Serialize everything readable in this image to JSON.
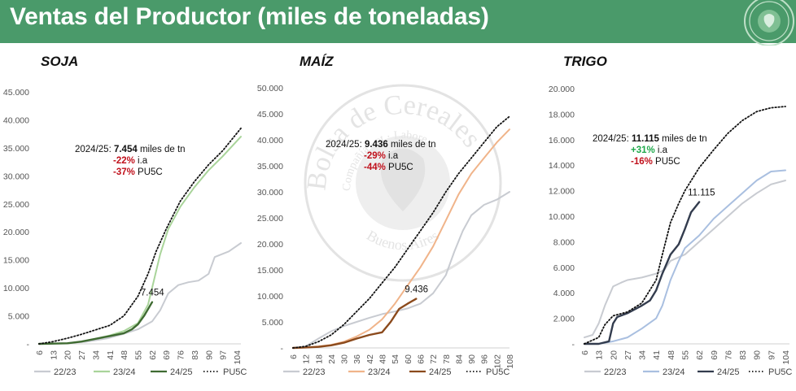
{
  "header": {
    "title": "Ventas del Productor (miles de toneladas)",
    "bg_color": "#4a9a6a"
  },
  "watermark": {
    "text_arc": "Bolsa de Cereales",
    "text_inner": "Compañía · et · Labore",
    "text_bottom": "Buenos Aires"
  },
  "colors": {
    "s2223": "#c8cbd1",
    "soja_2324": "#a9d49a",
    "soja_2425": "#3f6b32",
    "maiz_2324": "#f0b48a",
    "maiz_2425": "#8b4a1c",
    "trigo_2324": "#a9bfe0",
    "trigo_2425": "#333c4e",
    "pu5c": "#111111",
    "pct_neg": "#c0101b",
    "pct_pos": "#1ea84a"
  },
  "legend_labels": {
    "s2223": "22/23",
    "s2324": "23/24",
    "s2425": "24/25",
    "pu5c": "PU5C"
  },
  "chart_data": [
    {
      "type": "line",
      "title": "SOJA",
      "ylim": [
        0,
        45000
      ],
      "yticks": [
        "-",
        "5.000",
        "10.000",
        "15.000",
        "20.000",
        "25.000",
        "30.000",
        "35.000",
        "40.000",
        "45.000"
      ],
      "xticks": [
        "6",
        "13",
        "20",
        "27",
        "34",
        "41",
        "48",
        "55",
        "62",
        "69",
        "76",
        "83",
        "90",
        "97",
        "104"
      ],
      "xlim": [
        6,
        106
      ],
      "annotation": {
        "line1_prefix": "2024/25: ",
        "line1_value": "7.454",
        "line1_suffix": " miles de tn",
        "ia_value": "-22%",
        "ia_label": " i.a",
        "pu5c_value": "-37%",
        "pu5c_label": " PU5C"
      },
      "end_label": "7.454",
      "series": [
        {
          "name": "22/23",
          "x": [
            6,
            20,
            30,
            40,
            48,
            55,
            62,
            66,
            70,
            75,
            80,
            85,
            90,
            93,
            100,
            106
          ],
          "y": [
            0,
            100,
            400,
            1000,
            1800,
            2600,
            4000,
            6000,
            9000,
            10500,
            11000,
            11300,
            12500,
            15500,
            16500,
            18000
          ]
        },
        {
          "name": "23/24",
          "x": [
            6,
            20,
            27,
            34,
            41,
            48,
            55,
            60,
            62,
            66,
            70,
            76,
            83,
            90,
            97,
            106
          ],
          "y": [
            0,
            100,
            400,
            900,
            1500,
            2300,
            3700,
            7000,
            10000,
            16000,
            20500,
            24500,
            28000,
            31000,
            33500,
            37000
          ]
        },
        {
          "name": "24/25",
          "x": [
            6,
            20,
            27,
            34,
            41,
            48,
            52,
            55,
            58,
            62
          ],
          "y": [
            0,
            100,
            400,
            900,
            1400,
            1900,
            2600,
            3500,
            5000,
            7454
          ]
        },
        {
          "name": "PU5C",
          "x": [
            6,
            13,
            20,
            27,
            34,
            41,
            48,
            55,
            60,
            64,
            69,
            76,
            83,
            90,
            97,
            106
          ],
          "y": [
            0,
            400,
            1000,
            1700,
            2500,
            3300,
            5000,
            8500,
            12500,
            16500,
            20500,
            25500,
            29000,
            32000,
            34500,
            38500
          ]
        }
      ]
    },
    {
      "type": "line",
      "title": "MAÍZ",
      "ylim": [
        0,
        50000
      ],
      "yticks": [
        "-",
        "5.000",
        "10.000",
        "15.000",
        "20.000",
        "25.000",
        "30.000",
        "35.000",
        "40.000",
        "45.000",
        "50.000"
      ],
      "xticks": [
        "6",
        "12",
        "18",
        "24",
        "30",
        "36",
        "42",
        "48",
        "54",
        "60",
        "66",
        "72",
        "78",
        "84",
        "90",
        "96",
        "102",
        "108"
      ],
      "xlim": [
        6,
        108
      ],
      "annotation": {
        "line1_prefix": "2024/25: ",
        "line1_value": "9.436",
        "line1_suffix": " miles de tn",
        "ia_value": "-29%",
        "ia_label": " i.a",
        "pu5c_value": "-44%",
        "pu5c_label": " PU5C"
      },
      "end_label": "9.436",
      "series": [
        {
          "name": "22/23",
          "x": [
            6,
            12,
            18,
            24,
            30,
            36,
            42,
            48,
            54,
            60,
            66,
            72,
            78,
            82,
            86,
            90,
            96,
            102,
            108
          ],
          "y": [
            0,
            300,
            1800,
            3200,
            4200,
            5000,
            5800,
            6500,
            7000,
            7600,
            8500,
            10500,
            14000,
            18500,
            22500,
            25500,
            27500,
            28500,
            30000
          ]
        },
        {
          "name": "23/24",
          "x": [
            6,
            12,
            18,
            24,
            30,
            36,
            42,
            48,
            54,
            60,
            66,
            72,
            78,
            84,
            90,
            96,
            102,
            108
          ],
          "y": [
            0,
            100,
            300,
            600,
            1200,
            2200,
            3500,
            5500,
            8500,
            12000,
            15500,
            19500,
            24500,
            29500,
            33500,
            36500,
            39500,
            42000
          ]
        },
        {
          "name": "24/25",
          "x": [
            6,
            12,
            18,
            24,
            30,
            36,
            42,
            48,
            52,
            56,
            60,
            64
          ],
          "y": [
            0,
            100,
            200,
            500,
            1000,
            1800,
            2500,
            3000,
            5000,
            7500,
            8500,
            9436
          ]
        },
        {
          "name": "PU5C",
          "x": [
            6,
            12,
            18,
            24,
            30,
            36,
            42,
            48,
            54,
            60,
            66,
            72,
            78,
            84,
            90,
            96,
            102,
            108
          ],
          "y": [
            0,
            300,
            1200,
            2500,
            4500,
            7000,
            9500,
            12500,
            15500,
            19000,
            22500,
            26000,
            30000,
            33500,
            36500,
            39500,
            42500,
            44500
          ]
        }
      ]
    },
    {
      "type": "line",
      "title": "TRIGO",
      "ylim": [
        0,
        20000
      ],
      "yticks": [
        "-",
        "2.000",
        "4.000",
        "6.000",
        "8.000",
        "10.000",
        "12.000",
        "14.000",
        "16.000",
        "18.000",
        "20.000"
      ],
      "xticks": [
        "6",
        "13",
        "20",
        "27",
        "34",
        "41",
        "48",
        "55",
        "62",
        "69",
        "76",
        "83",
        "90",
        "97",
        "104"
      ],
      "xlim": [
        6,
        106
      ],
      "annotation": {
        "line1_prefix": "2024/25: ",
        "line1_value": "11.115",
        "line1_suffix": " miles de tn",
        "ia_value": "+31%",
        "ia_label": " i.a",
        "pu5c_value": "-16%",
        "pu5c_label": " PU5C"
      },
      "end_label": "11.115",
      "series": [
        {
          "name": "22/23",
          "x": [
            6,
            10,
            13,
            16,
            20,
            24,
            27,
            34,
            41,
            45,
            48,
            55,
            62,
            69,
            76,
            83,
            90,
            97,
            104
          ],
          "y": [
            500,
            700,
            1600,
            3000,
            4500,
            4800,
            5000,
            5200,
            5500,
            5800,
            6500,
            7000,
            8000,
            9000,
            10000,
            11000,
            11800,
            12500,
            12800
          ]
        },
        {
          "name": "23/24",
          "x": [
            6,
            13,
            20,
            27,
            34,
            41,
            44,
            48,
            52,
            55,
            62,
            69,
            76,
            83,
            90,
            97,
            104
          ],
          "y": [
            0,
            0,
            200,
            500,
            1200,
            2000,
            3000,
            5000,
            6500,
            7500,
            8500,
            9800,
            10800,
            11800,
            12800,
            13500,
            13600
          ]
        },
        {
          "name": "24/25",
          "x": [
            6,
            13,
            18,
            20,
            22,
            27,
            34,
            38,
            41,
            44,
            48,
            52,
            55,
            58,
            62
          ],
          "y": [
            0,
            0,
            200,
            1600,
            2100,
            2400,
            3000,
            3400,
            4200,
            5500,
            7000,
            7800,
            9000,
            10300,
            11115
          ]
        },
        {
          "name": "PU5C",
          "x": [
            6,
            13,
            16,
            20,
            27,
            34,
            41,
            44,
            48,
            52,
            55,
            62,
            69,
            76,
            83,
            90,
            97,
            104
          ],
          "y": [
            0,
            500,
            1500,
            2200,
            2500,
            3200,
            5000,
            7000,
            9500,
            11000,
            12000,
            13800,
            15200,
            16500,
            17500,
            18200,
            18500,
            18600
          ]
        }
      ]
    }
  ]
}
